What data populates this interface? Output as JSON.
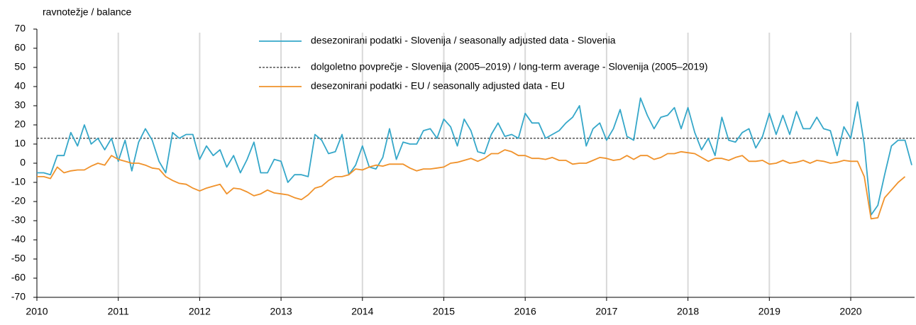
{
  "chart_data": {
    "type": "line",
    "y_axis_label": "ravnotežje / balance",
    "categories": [
      "2010",
      null,
      null,
      null,
      null,
      null,
      null,
      null,
      null,
      null,
      null,
      null,
      "2011",
      null,
      null,
      null,
      null,
      null,
      null,
      null,
      null,
      null,
      null,
      null,
      "2012",
      null,
      null,
      null,
      null,
      null,
      null,
      null,
      null,
      null,
      null,
      null,
      "2013",
      null,
      null,
      null,
      null,
      null,
      null,
      null,
      null,
      null,
      null,
      null,
      "2014",
      null,
      null,
      null,
      null,
      null,
      null,
      null,
      null,
      null,
      null,
      null,
      "2015",
      null,
      null,
      null,
      null,
      null,
      null,
      null,
      null,
      null,
      null,
      null,
      "2016",
      null,
      null,
      null,
      null,
      null,
      null,
      null,
      null,
      null,
      null,
      null,
      "2017",
      null,
      null,
      null,
      null,
      null,
      null,
      null,
      null,
      null,
      null,
      null,
      "2018",
      null,
      null,
      null,
      null,
      null,
      null,
      null,
      null,
      null,
      null,
      null,
      "2019",
      null,
      null,
      null,
      null,
      null,
      null,
      null,
      null,
      null,
      null,
      null,
      "2020",
      null,
      null,
      null,
      null,
      null,
      null,
      null,
      null,
      null
    ],
    "series": [
      {
        "name": "desezonirani podatki - Slovenija / seasonally adjusted data - Slovenia",
        "color": "#35a7c9",
        "values": [
          -5,
          -5,
          -6,
          4,
          4,
          16,
          9,
          20,
          10,
          13,
          7,
          13,
          1,
          12,
          -4,
          11,
          18,
          12,
          1,
          -5,
          16,
          13,
          15,
          15,
          2,
          9,
          4,
          7,
          -2,
          4,
          -5,
          2,
          11,
          -5,
          -5,
          2,
          1,
          -10,
          -6,
          -6,
          -7,
          15,
          12,
          5,
          6,
          15,
          -6,
          -1,
          9,
          -2,
          -3,
          3,
          18,
          2,
          11,
          10,
          10,
          17,
          18,
          13,
          23,
          19,
          9,
          23,
          17,
          6,
          5,
          15,
          21,
          14,
          15,
          13,
          26,
          21,
          21,
          13,
          15,
          17,
          21,
          24,
          30,
          9,
          18,
          21,
          12,
          18,
          28,
          14,
          12,
          34,
          25,
          18,
          24,
          25,
          29,
          18,
          29,
          16,
          7,
          13,
          4,
          24,
          12,
          11,
          16,
          18,
          8,
          14,
          26,
          15,
          25,
          15,
          27,
          18,
          18,
          24,
          18,
          17,
          4,
          19,
          13,
          32,
          10,
          -27,
          -22,
          -6,
          9,
          12,
          12,
          -1
        ]
      },
      {
        "name": "desezonirani podatki - EU / seasonally adjusted data - EU",
        "color": "#f0922b",
        "values": [
          -7,
          -7,
          -8,
          -2,
          -5,
          -4,
          -3.5,
          -3.5,
          -1.5,
          0,
          -1,
          4,
          2,
          1,
          0,
          0,
          -1,
          -2.5,
          -3,
          -7,
          -9,
          -10.5,
          -11,
          -13,
          -14.5,
          -13,
          -12,
          -11,
          -16,
          -13,
          -13.5,
          -15,
          -17,
          -16,
          -14,
          -15.5,
          -16,
          -16.5,
          -18,
          -19,
          -16.5,
          -13,
          -12,
          -9,
          -7,
          -7,
          -6,
          -3,
          -3.5,
          -2,
          -1,
          -1.5,
          -0.5,
          -0.5,
          -0.5,
          -2.5,
          -4,
          -3,
          -3,
          -2.5,
          -2,
          0,
          0.5,
          1.5,
          2.5,
          1,
          2.5,
          5,
          5,
          7,
          6,
          4,
          4,
          2.5,
          2.5,
          2,
          3,
          1.5,
          1.5,
          -0.5,
          0,
          0,
          1.5,
          3,
          2.5,
          1.5,
          2,
          4,
          2,
          4,
          4,
          2,
          3,
          5,
          5,
          6,
          5.5,
          5,
          3,
          1,
          2.5,
          2.5,
          1.5,
          3,
          4,
          1,
          1,
          1.5,
          -0.5,
          0,
          1.5,
          0,
          0.5,
          1.5,
          0,
          1.5,
          1,
          0,
          0.5,
          1.5,
          1,
          1,
          -7,
          -29,
          -28.5,
          -18,
          -14,
          -10,
          -7,
          null
        ]
      }
    ],
    "reference_line": {
      "name": "dolgoletno povprečje - Slovenija (2005–2019)  / long-term average - Slovenija (2005–2019)",
      "value": 13,
      "color": "#333333"
    },
    "ylim": [
      -70,
      70
    ],
    "yticks": [
      -70,
      -60,
      -50,
      -40,
      -30,
      -20,
      -10,
      0,
      10,
      20,
      30,
      40,
      50,
      60,
      70
    ],
    "grid": true
  }
}
